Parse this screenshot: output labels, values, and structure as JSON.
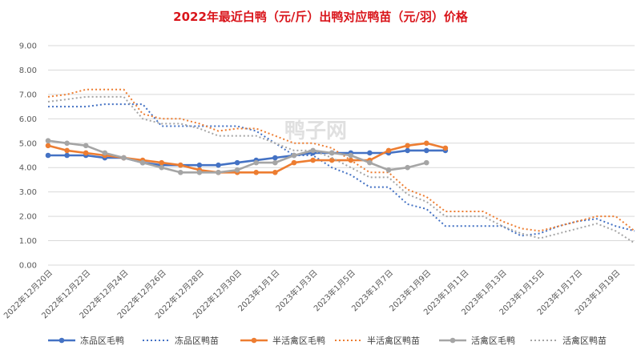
{
  "chart_data": {
    "type": "line",
    "title": "2022年最近白鸭（元/斤）出鸭对应鸭苗（元/羽）价格",
    "ylim": [
      0,
      9
    ],
    "y_ticks": [
      "0.00",
      "1.00",
      "2.00",
      "3.00",
      "4.00",
      "5.00",
      "6.00",
      "7.00",
      "8.00",
      "9.00"
    ],
    "grid": "horizontal",
    "legend_position": "bottom",
    "watermark": "鸭子网",
    "categories": [
      "2022年12月20日",
      "2022年12月21日",
      "2022年12月22日",
      "2022年12月23日",
      "2022年12月24日",
      "2022年12月25日",
      "2022年12月26日",
      "2022年12月27日",
      "2022年12月28日",
      "2022年12月29日",
      "2022年12月30日",
      "2022年12月31日",
      "2023年1月1日",
      "2023年1月2日",
      "2023年1月3日",
      "2023年1月4日",
      "2023年1月5日",
      "2023年1月6日",
      "2023年1月7日",
      "2023年1月8日",
      "2023年1月9日",
      "2023年1月10日",
      "2023年1月11日",
      "2023年1月12日",
      "2023年1月13日",
      "2023年1月14日",
      "2023年1月15日",
      "2023年1月16日",
      "2023年1月17日",
      "2023年1月18日",
      "2023年1月19日",
      "2023年1月20日"
    ],
    "x_tick_labels": [
      "2022年12月20日",
      "2022年12月22日",
      "2022年12月24日",
      "2022年12月26日",
      "2022年12月28日",
      "2022年12月30日",
      "2023年1月1日",
      "2023年1月3日",
      "2023年1月5日",
      "2023年1月7日",
      "2023年1月9日",
      "2023年1月11日",
      "2023年1月13日",
      "2023年1月15日",
      "2023年1月17日",
      "2023年1月19日"
    ],
    "series": [
      {
        "name": "冻品区毛鸭",
        "color": "#4472c4",
        "style": "solid-marker",
        "values": [
          4.5,
          4.5,
          4.5,
          4.4,
          4.4,
          4.2,
          4.1,
          4.1,
          4.1,
          4.1,
          4.2,
          4.3,
          4.4,
          4.5,
          4.6,
          4.6,
          4.6,
          4.6,
          4.6,
          4.7,
          4.7,
          4.7,
          null,
          null,
          null,
          null,
          null,
          null,
          null,
          null,
          null,
          null
        ]
      },
      {
        "name": "冻品区鸭苗",
        "color": "#4472c4",
        "style": "dotted",
        "values": [
          6.5,
          6.5,
          6.5,
          6.6,
          6.6,
          6.6,
          5.7,
          5.7,
          5.7,
          5.7,
          5.7,
          5.5,
          5.0,
          4.5,
          4.5,
          4.0,
          3.7,
          3.2,
          3.2,
          2.5,
          2.3,
          1.6,
          1.6,
          1.6,
          1.6,
          1.2,
          1.3,
          1.6,
          1.8,
          1.9,
          1.6,
          1.4
        ]
      },
      {
        "name": "半活禽区毛鸭",
        "color": "#ed7d31",
        "style": "solid-marker",
        "values": [
          4.9,
          4.7,
          4.6,
          4.5,
          4.4,
          4.3,
          4.2,
          4.1,
          3.9,
          3.8,
          3.8,
          3.8,
          3.8,
          4.2,
          4.3,
          4.3,
          4.3,
          4.3,
          4.7,
          4.9,
          5.0,
          4.8,
          null,
          null,
          null,
          null,
          null,
          null,
          null,
          null,
          null,
          null
        ]
      },
      {
        "name": "半活禽区鸭苗",
        "color": "#ed7d31",
        "style": "dotted",
        "values": [
          6.9,
          7.0,
          7.2,
          7.2,
          7.2,
          6.2,
          6.0,
          6.0,
          5.8,
          5.5,
          5.6,
          5.6,
          5.3,
          5.0,
          5.0,
          4.8,
          4.3,
          3.8,
          3.8,
          3.1,
          2.8,
          2.2,
          2.2,
          2.2,
          1.8,
          1.5,
          1.4,
          1.6,
          1.8,
          2.0,
          2.0,
          1.4
        ]
      },
      {
        "name": "活禽区毛鸭",
        "color": "#a5a5a5",
        "style": "solid-marker",
        "values": [
          5.1,
          5.0,
          4.9,
          4.6,
          4.4,
          4.2,
          4.0,
          3.8,
          3.8,
          3.8,
          3.9,
          4.2,
          4.2,
          4.5,
          4.7,
          4.6,
          4.5,
          4.2,
          3.9,
          4.0,
          4.2,
          null,
          null,
          null,
          null,
          null,
          null,
          null,
          null,
          null,
          null,
          null
        ]
      },
      {
        "name": "活禽区鸭苗",
        "color": "#a5a5a5",
        "style": "dotted",
        "values": [
          6.7,
          6.8,
          6.9,
          6.9,
          6.9,
          6.0,
          5.8,
          5.8,
          5.6,
          5.3,
          5.3,
          5.3,
          5.0,
          4.7,
          4.7,
          4.4,
          4.0,
          3.6,
          3.6,
          2.9,
          2.6,
          2.0,
          2.0,
          2.0,
          1.6,
          1.3,
          1.1,
          1.3,
          1.5,
          1.7,
          1.4,
          0.9
        ]
      }
    ]
  }
}
